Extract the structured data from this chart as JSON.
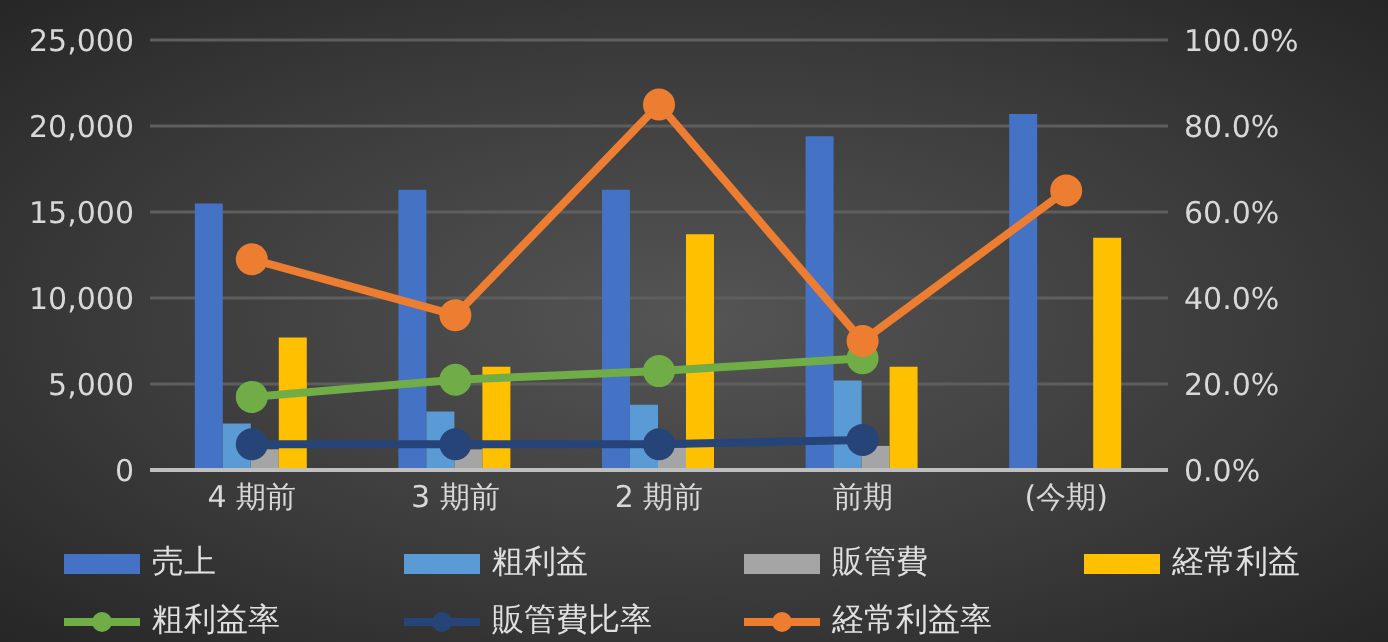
{
  "chart_data": {
    "type": "bar",
    "categories": [
      "4 期前",
      "3 期前",
      "2 期前",
      "前期",
      "(今期)"
    ],
    "series": [
      {
        "name": "売上",
        "color": "#4472c4",
        "values": [
          15500,
          16300,
          16300,
          19400,
          20700
        ]
      },
      {
        "name": "粗利益",
        "color": "#5b9bd5",
        "values": [
          2700,
          3400,
          3800,
          5200,
          null
        ]
      },
      {
        "name": "販管費",
        "color": "#a5a5a5",
        "values": [
          1200,
          1200,
          1300,
          1400,
          null
        ]
      },
      {
        "name": "経常利益",
        "color": "#ffc000",
        "values": [
          7700,
          6000,
          13700,
          6000,
          13500
        ]
      },
      {
        "name": "粗利益率",
        "type": "line",
        "axis": "y2",
        "color": "#70ad47",
        "values": [
          17,
          21,
          23,
          26,
          null
        ]
      },
      {
        "name": "販管費比率",
        "type": "line",
        "axis": "y2",
        "color": "#264478",
        "values": [
          6,
          6,
          6,
          7,
          null
        ]
      },
      {
        "name": "経常利益率",
        "type": "line",
        "axis": "y2",
        "color": "#ed7d31",
        "values": [
          49,
          36,
          85,
          30,
          65
        ]
      }
    ],
    "ylim": [
      0,
      25000
    ],
    "yticks": [
      0,
      {
        "value": 5000,
        "label": "5,000"
      },
      {
        "value": 10000,
        "label": "10,000"
      },
      {
        "value": 15000,
        "label": "15,000"
      },
      {
        "value": 20000,
        "label": "20,000"
      },
      {
        "value": 25000,
        "label": "25,000"
      }
    ],
    "y2lim": [
      0,
      100
    ],
    "y2ticks": [
      {
        "value": 0,
        "label": "0.0%"
      },
      {
        "value": 20,
        "label": "20.0%"
      },
      {
        "value": 40,
        "label": "40.0%"
      },
      {
        "value": 60,
        "label": "60.0%"
      },
      {
        "value": 80,
        "label": "80.0%"
      },
      {
        "value": 100,
        "label": "100.0%"
      }
    ],
    "grid": "y",
    "legend": "bottom",
    "marker": "circle"
  }
}
